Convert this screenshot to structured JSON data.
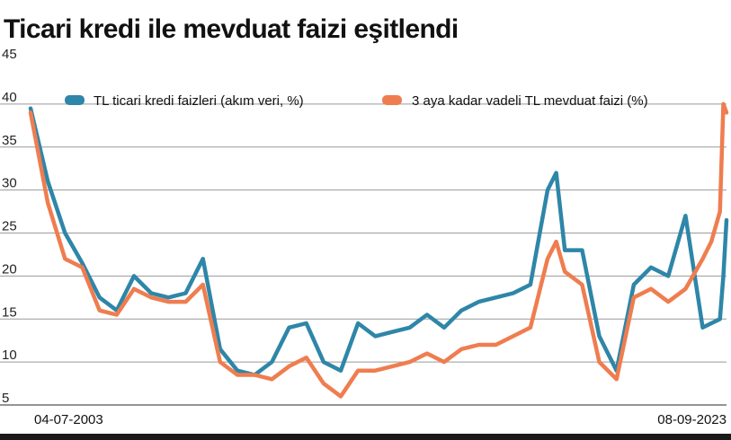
{
  "chart_data": {
    "type": "line",
    "title": "Ticari kredi ile mevduat faizi eşitlendi",
    "xlabel": "",
    "ylabel": "",
    "x_start_label": "04-07-2003",
    "x_end_label": "08-09-2023",
    "x": [
      2003.5,
      2004.0,
      2004.5,
      2005.0,
      2005.5,
      2006.0,
      2006.5,
      2007.0,
      2007.5,
      2008.0,
      2008.5,
      2009.0,
      2009.5,
      2010.0,
      2010.5,
      2011.0,
      2011.5,
      2012.0,
      2012.5,
      2013.0,
      2013.5,
      2014.0,
      2014.5,
      2015.0,
      2015.5,
      2016.0,
      2016.5,
      2017.0,
      2017.5,
      2018.0,
      2018.5,
      2018.75,
      2019.0,
      2019.5,
      2020.0,
      2020.5,
      2021.0,
      2021.5,
      2022.0,
      2022.5,
      2023.0,
      2023.25,
      2023.5,
      2023.6,
      2023.69
    ],
    "ylim": [
      5,
      45
    ],
    "yticks": [
      45,
      40,
      35,
      30,
      25,
      20,
      15,
      10,
      5
    ],
    "grid": true,
    "legend_position": "top",
    "series": [
      {
        "name": "TL ticari kredi faizleri (akım veri, %)",
        "color": "#2e86a8",
        "values": [
          39.5,
          31.0,
          25.0,
          21.5,
          17.5,
          16.0,
          20.0,
          18.0,
          17.5,
          18.0,
          22.0,
          11.5,
          9.0,
          8.5,
          10.0,
          14.0,
          14.5,
          10.0,
          9.0,
          14.5,
          13.0,
          13.5,
          14.0,
          15.5,
          14.0,
          16.0,
          17.0,
          17.5,
          18.0,
          19.0,
          30.0,
          32.0,
          23.0,
          23.0,
          13.0,
          9.0,
          19.0,
          21.0,
          20.0,
          27.0,
          14.0,
          14.5,
          15.0,
          20.0,
          26.5
        ]
      },
      {
        "name": "3 aya kadar vadeli TL mevduat faizi (%)",
        "color": "#ef7d4f",
        "values": [
          39.0,
          28.5,
          22.0,
          21.0,
          16.0,
          15.5,
          18.5,
          17.5,
          17.0,
          17.0,
          19.0,
          10.0,
          8.5,
          8.5,
          8.0,
          9.5,
          10.5,
          7.5,
          6.0,
          9.0,
          9.0,
          9.5,
          10.0,
          11.0,
          10.0,
          11.5,
          12.0,
          12.0,
          13.0,
          14.0,
          22.0,
          24.0,
          20.5,
          19.0,
          10.0,
          8.0,
          17.5,
          18.5,
          17.0,
          18.5,
          22.0,
          24.0,
          27.5,
          40.0,
          39.0
        ]
      }
    ]
  }
}
